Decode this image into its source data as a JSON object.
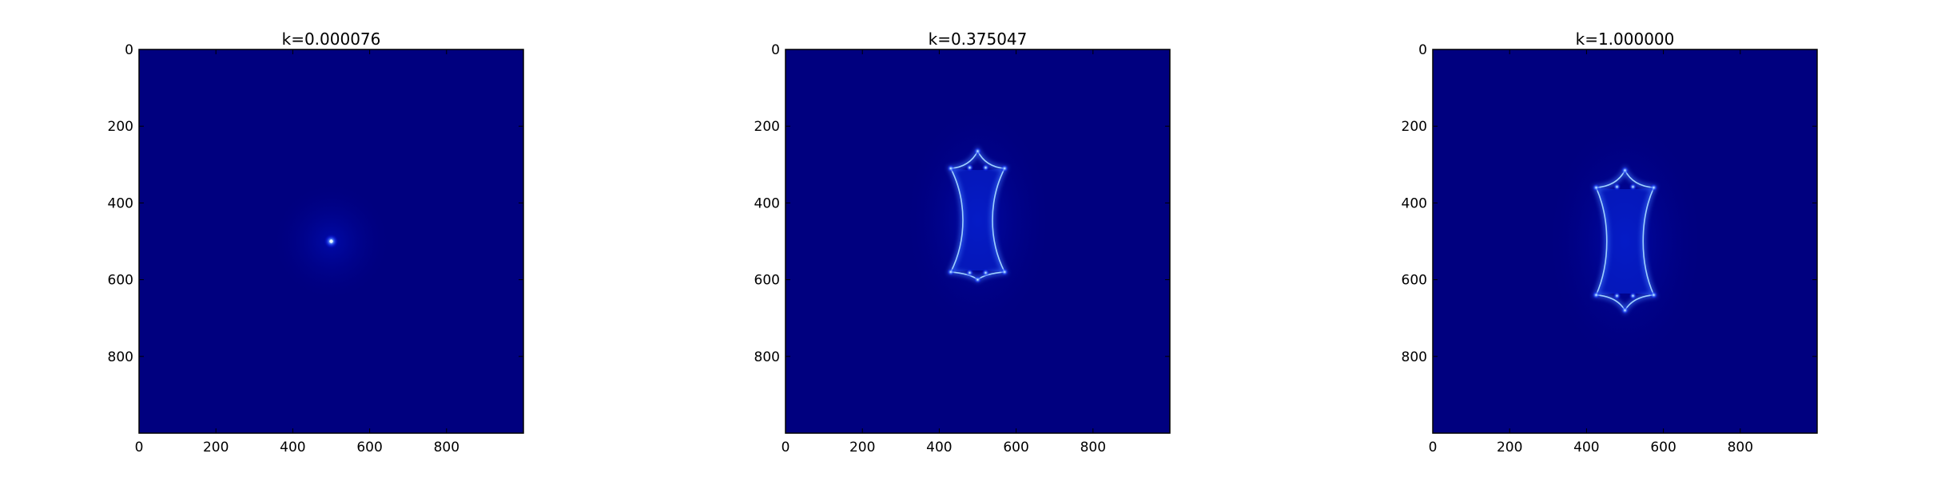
{
  "chart_data": [
    {
      "type": "heatmap",
      "title": "k=0.000076",
      "xlim": [
        0,
        1000
      ],
      "ylim": [
        1000,
        0
      ],
      "x_ticks": [
        0,
        200,
        400,
        600,
        800
      ],
      "y_ticks": [
        0,
        200,
        400,
        600,
        800
      ],
      "x_tick_labels": [
        "0",
        "200",
        "400",
        "600",
        "800"
      ],
      "y_tick_labels": [
        "0",
        "200",
        "400",
        "600",
        "800"
      ],
      "colormap": "jet",
      "background_color": "#00007f",
      "feature": {
        "kind": "point",
        "center": [
          500,
          500
        ]
      }
    },
    {
      "type": "heatmap",
      "title": "k=0.375047",
      "xlim": [
        0,
        1000
      ],
      "ylim": [
        1000,
        0
      ],
      "x_ticks": [
        0,
        200,
        400,
        600,
        800
      ],
      "y_ticks": [
        0,
        200,
        400,
        600,
        800
      ],
      "x_tick_labels": [
        "0",
        "200",
        "400",
        "600",
        "800"
      ],
      "y_tick_labels": [
        "0",
        "200",
        "400",
        "600",
        "800"
      ],
      "colormap": "jet",
      "background_color": "#00007f",
      "feature": {
        "kind": "caustic",
        "center_x": 500,
        "top_cusp_y": 265,
        "bottom_cusp_y": 600,
        "shoulder_top_y": 310,
        "shoulder_bottom_y": 580,
        "half_width": 70,
        "waist_half_width": 28
      }
    },
    {
      "type": "heatmap",
      "title": "k=1.000000",
      "xlim": [
        0,
        1000
      ],
      "ylim": [
        1000,
        0
      ],
      "x_ticks": [
        0,
        200,
        400,
        600,
        800
      ],
      "y_ticks": [
        0,
        200,
        400,
        600,
        800
      ],
      "x_tick_labels": [
        "0",
        "200",
        "400",
        "600",
        "800"
      ],
      "y_tick_labels": [
        "0",
        "200",
        "400",
        "600",
        "800"
      ],
      "colormap": "jet",
      "background_color": "#00007f",
      "feature": {
        "kind": "caustic",
        "center_x": 500,
        "top_cusp_y": 315,
        "bottom_cusp_y": 680,
        "shoulder_top_y": 360,
        "shoulder_bottom_y": 640,
        "half_width": 75,
        "waist_half_width": 38
      }
    }
  ]
}
